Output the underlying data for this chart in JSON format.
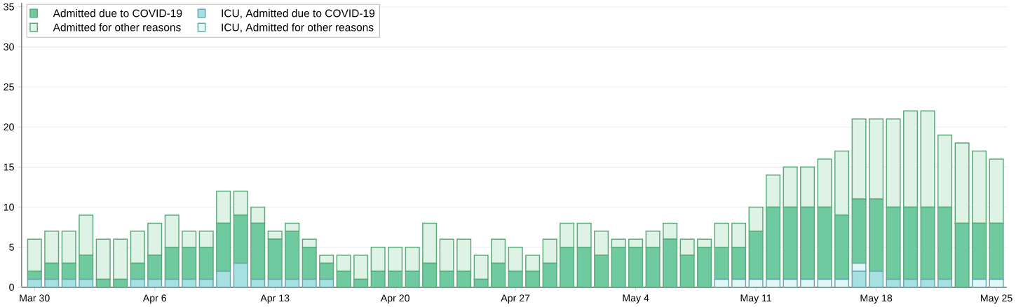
{
  "chart_data": {
    "type": "bar",
    "stacked": true,
    "categories": [
      "Mar 30",
      null,
      null,
      null,
      null,
      null,
      null,
      "Apr 6",
      null,
      null,
      null,
      null,
      null,
      null,
      "Apr 13",
      null,
      null,
      null,
      null,
      null,
      null,
      "Apr 20",
      null,
      null,
      null,
      null,
      null,
      null,
      "Apr 27",
      null,
      null,
      null,
      null,
      null,
      null,
      "May 4",
      null,
      null,
      null,
      null,
      null,
      null,
      "May 11",
      null,
      null,
      null,
      null,
      null,
      null,
      "May 18",
      null,
      null,
      null,
      null,
      null,
      null,
      "May 25"
    ],
    "series": [
      {
        "name": "ICU, Admitted due to COVID-19",
        "color": "#a6e0e0",
        "values": [
          1,
          1,
          1,
          1,
          0,
          0,
          1,
          1,
          1,
          1,
          1,
          2,
          3,
          1,
          1,
          1,
          1,
          1,
          0,
          0,
          0,
          0,
          0,
          0,
          0,
          0,
          0,
          0,
          0,
          0,
          0,
          0,
          0,
          0,
          0,
          0,
          0,
          0,
          0,
          0,
          0,
          0,
          0,
          0,
          0,
          0,
          0,
          0,
          2,
          2,
          1,
          1,
          1,
          1,
          0,
          0,
          0
        ]
      },
      {
        "name": "ICU, Admitted for other reasons",
        "color": "#e3f6f6",
        "values": [
          0,
          0,
          0,
          0,
          0,
          0,
          0,
          0,
          0,
          0,
          0,
          0,
          0,
          0,
          0,
          0,
          0,
          0,
          0,
          0,
          0,
          0,
          0,
          0,
          0,
          0,
          0,
          0,
          0,
          0,
          0,
          0,
          0,
          0,
          0,
          0,
          0,
          0,
          0,
          0,
          1,
          1,
          1,
          1,
          1,
          1,
          1,
          1,
          1,
          0,
          0,
          0,
          0,
          0,
          0,
          1,
          1
        ]
      },
      {
        "name": "Admitted due to COVID-19",
        "color": "#6fcb9f",
        "values": [
          1,
          2,
          2,
          3,
          1,
          1,
          2,
          3,
          4,
          4,
          4,
          6,
          6,
          7,
          5,
          6,
          4,
          2,
          2,
          1,
          2,
          2,
          2,
          3,
          2,
          2,
          1,
          3,
          2,
          2,
          3,
          5,
          5,
          4,
          5,
          5,
          5,
          6,
          4,
          5,
          4,
          4,
          6,
          9,
          9,
          9,
          9,
          8,
          8,
          9,
          9,
          9,
          9,
          9,
          8,
          7,
          7
        ]
      },
      {
        "name": "Admitted for other reasons",
        "color": "#dff2e6",
        "values": [
          4,
          4,
          4,
          5,
          5,
          5,
          4,
          4,
          4,
          2,
          2,
          4,
          3,
          2,
          1,
          1,
          1,
          1,
          2,
          3,
          3,
          3,
          3,
          5,
          4,
          4,
          3,
          3,
          3,
          2,
          3,
          3,
          3,
          3,
          1,
          1,
          2,
          2,
          2,
          1,
          3,
          3,
          3,
          4,
          5,
          5,
          6,
          8,
          10,
          10,
          11,
          12,
          12,
          9,
          10,
          9,
          8
        ]
      }
    ],
    "ylim": [
      0,
      35.5
    ],
    "yticks": [
      0,
      5,
      10,
      15,
      20,
      25,
      30,
      35
    ],
    "grid": "y",
    "legend": "top left"
  }
}
